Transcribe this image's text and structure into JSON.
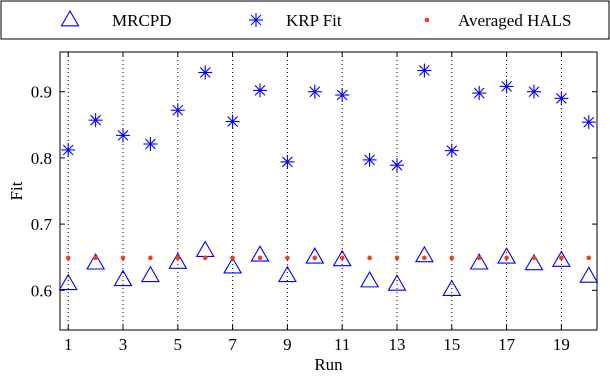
{
  "chart_data": {
    "type": "scatter",
    "xlabel": "Run",
    "ylabel": "Fit",
    "xlim": [
      0.7,
      20.3
    ],
    "ylim": [
      0.54,
      0.96
    ],
    "xticks": [
      1,
      3,
      5,
      7,
      9,
      11,
      13,
      15,
      17,
      19
    ],
    "yticks": [
      0.6,
      0.7,
      0.8,
      0.9
    ],
    "ytick_labels": [
      "0.6",
      "0.7",
      "0.8",
      "0.9"
    ],
    "grid": "vertical dotted at x ticks",
    "legend": {
      "position": "top, outside plot",
      "orientation": "horizontal"
    },
    "x": [
      1,
      2,
      3,
      4,
      5,
      6,
      7,
      8,
      9,
      10,
      11,
      12,
      13,
      14,
      15,
      16,
      17,
      18,
      19,
      20
    ],
    "series": [
      {
        "name": "MRCPD",
        "marker": "triangle",
        "color": "#0000ff",
        "values": [
          0.61,
          0.641,
          0.616,
          0.622,
          0.642,
          0.66,
          0.635,
          0.653,
          0.622,
          0.65,
          0.646,
          0.614,
          0.609,
          0.652,
          0.601,
          0.641,
          0.65,
          0.64,
          0.645,
          0.621
        ]
      },
      {
        "name": "KRP Fit",
        "marker": "asterisk",
        "color": "#0000ff",
        "values": [
          0.812,
          0.857,
          0.834,
          0.821,
          0.872,
          0.929,
          0.855,
          0.902,
          0.794,
          0.9,
          0.895,
          0.797,
          0.789,
          0.932,
          0.811,
          0.898,
          0.908,
          0.9,
          0.89,
          0.854
        ]
      },
      {
        "name": "Averaged HALS",
        "marker": "dot",
        "color": "#e8431c",
        "values": [
          0.649,
          0.649,
          0.649,
          0.649,
          0.649,
          0.649,
          0.649,
          0.649,
          0.649,
          0.649,
          0.649,
          0.649,
          0.649,
          0.649,
          0.649,
          0.649,
          0.649,
          0.649,
          0.649,
          0.649
        ]
      }
    ]
  }
}
